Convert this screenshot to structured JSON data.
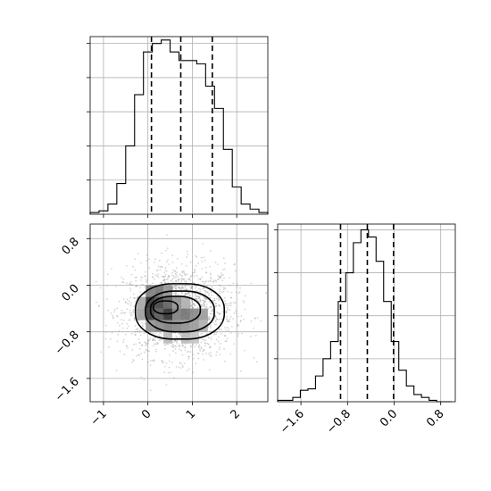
{
  "chart_data": [
    {
      "type": "histogram",
      "panel": "marginal-x",
      "bin_edges": [
        -1.3,
        -1.1,
        -0.9,
        -0.7,
        -0.5,
        -0.3,
        -0.1,
        0.1,
        0.3,
        0.5,
        0.7,
        0.9,
        1.1,
        1.3,
        1.5,
        1.7,
        1.9,
        2.1,
        2.3,
        2.5,
        2.7
      ],
      "counts": [
        1,
        2,
        6,
        18,
        40,
        70,
        95,
        100,
        102,
        95,
        90,
        90,
        88,
        75,
        62,
        38,
        16,
        6,
        3,
        1
      ],
      "ylim": [
        0,
        104
      ],
      "xlim": [
        -1.3,
        2.7
      ],
      "quantile_lines": [
        0.08,
        0.74,
        1.45
      ],
      "grid": true,
      "y_tick_values": [
        20,
        40,
        60,
        80,
        100
      ]
    },
    {
      "type": "histogram",
      "panel": "marginal-y",
      "bin_edges": [
        -2.0,
        -1.87,
        -1.74,
        -1.61,
        -1.48,
        -1.35,
        -1.22,
        -1.09,
        -0.96,
        -0.83,
        -0.7,
        -0.57,
        -0.44,
        -0.31,
        -0.18,
        -0.05,
        0.08,
        0.21,
        0.34,
        0.47,
        0.6,
        0.73,
        0.86,
        0.99
      ],
      "counts": [
        1,
        1,
        3,
        8,
        9,
        18,
        30,
        42,
        70,
        90,
        111,
        120,
        115,
        98,
        70,
        42,
        22,
        11,
        5,
        3,
        1,
        0,
        0
      ],
      "ylim": [
        0,
        124
      ],
      "xlim": [
        -2.0,
        1.05
      ],
      "x_ticks": [
        -1.6,
        -0.8,
        0.0,
        0.8
      ],
      "x_tick_labels": [
        "−1.6",
        "−0.8",
        "0.0",
        "0.8"
      ],
      "quantile_lines": [
        -0.92,
        -0.46,
        -0.01
      ],
      "grid": true,
      "y_tick_values": [
        30,
        60,
        90,
        120
      ]
    },
    {
      "type": "scatter-density",
      "panel": "joint",
      "xlim": [
        -1.3,
        2.7
      ],
      "ylim": [
        -2.0,
        1.05
      ],
      "x_ticks": [
        -1,
        0,
        1,
        2
      ],
      "x_tick_labels": [
        "−1",
        "0",
        "1",
        "2"
      ],
      "y_ticks": [
        -1.6,
        -0.8,
        0.0,
        0.8
      ],
      "y_tick_labels": [
        "−1.6",
        "−0.8",
        "0.0",
        "0.8"
      ],
      "center": [
        0.7,
        -0.45
      ],
      "spread": [
        0.62,
        0.4
      ],
      "contour_levels": [
        {
          "cx": 0.72,
          "cy": -0.45,
          "rx": 2.0,
          "ry": 0.95,
          "level": "outer"
        },
        {
          "cx": 0.72,
          "cy": -0.45,
          "rx": 1.55,
          "ry": 0.7,
          "level": "second"
        },
        {
          "cx": 0.62,
          "cy": -0.42,
          "rx": 1.12,
          "ry": 0.46,
          "level": "third"
        },
        {
          "cx": 0.4,
          "cy": -0.38,
          "rx": 0.55,
          "ry": 0.22,
          "level": "inner"
        }
      ],
      "density_cells": [
        {
          "x": 0.05,
          "y": -0.1,
          "v": 0.55
        },
        {
          "x": 0.25,
          "y": -0.1,
          "v": 0.6
        },
        {
          "x": 0.45,
          "y": -0.1,
          "v": 0.45
        },
        {
          "x": -0.15,
          "y": -0.3,
          "v": 0.35
        },
        {
          "x": 0.05,
          "y": -0.3,
          "v": 0.95
        },
        {
          "x": 0.25,
          "y": -0.3,
          "v": 0.85
        },
        {
          "x": 0.45,
          "y": -0.3,
          "v": 0.7
        },
        {
          "x": 0.65,
          "y": -0.3,
          "v": 0.45
        },
        {
          "x": 0.85,
          "y": -0.3,
          "v": 0.3
        },
        {
          "x": -0.15,
          "y": -0.5,
          "v": 0.4
        },
        {
          "x": 0.05,
          "y": -0.5,
          "v": 0.9
        },
        {
          "x": 0.25,
          "y": -0.5,
          "v": 0.75
        },
        {
          "x": 0.45,
          "y": -0.5,
          "v": 0.95
        },
        {
          "x": 0.65,
          "y": -0.5,
          "v": 0.55
        },
        {
          "x": 0.85,
          "y": -0.5,
          "v": 0.6
        },
        {
          "x": 1.05,
          "y": -0.5,
          "v": 0.5
        },
        {
          "x": 1.25,
          "y": -0.5,
          "v": 0.4
        },
        {
          "x": 0.05,
          "y": -0.7,
          "v": 0.45
        },
        {
          "x": 0.25,
          "y": -0.7,
          "v": 0.5
        },
        {
          "x": 0.45,
          "y": -0.7,
          "v": 0.55
        },
        {
          "x": 0.65,
          "y": -0.7,
          "v": 0.5
        },
        {
          "x": 0.85,
          "y": -0.7,
          "v": 0.45
        },
        {
          "x": 1.05,
          "y": -0.7,
          "v": 0.4
        },
        {
          "x": 1.25,
          "y": -0.7,
          "v": 0.3
        },
        {
          "x": 0.45,
          "y": -0.9,
          "v": 0.25
        },
        {
          "x": 0.85,
          "y": -0.9,
          "v": 0.25
        },
        {
          "x": 1.05,
          "y": -0.9,
          "v": 0.2
        }
      ]
    }
  ]
}
